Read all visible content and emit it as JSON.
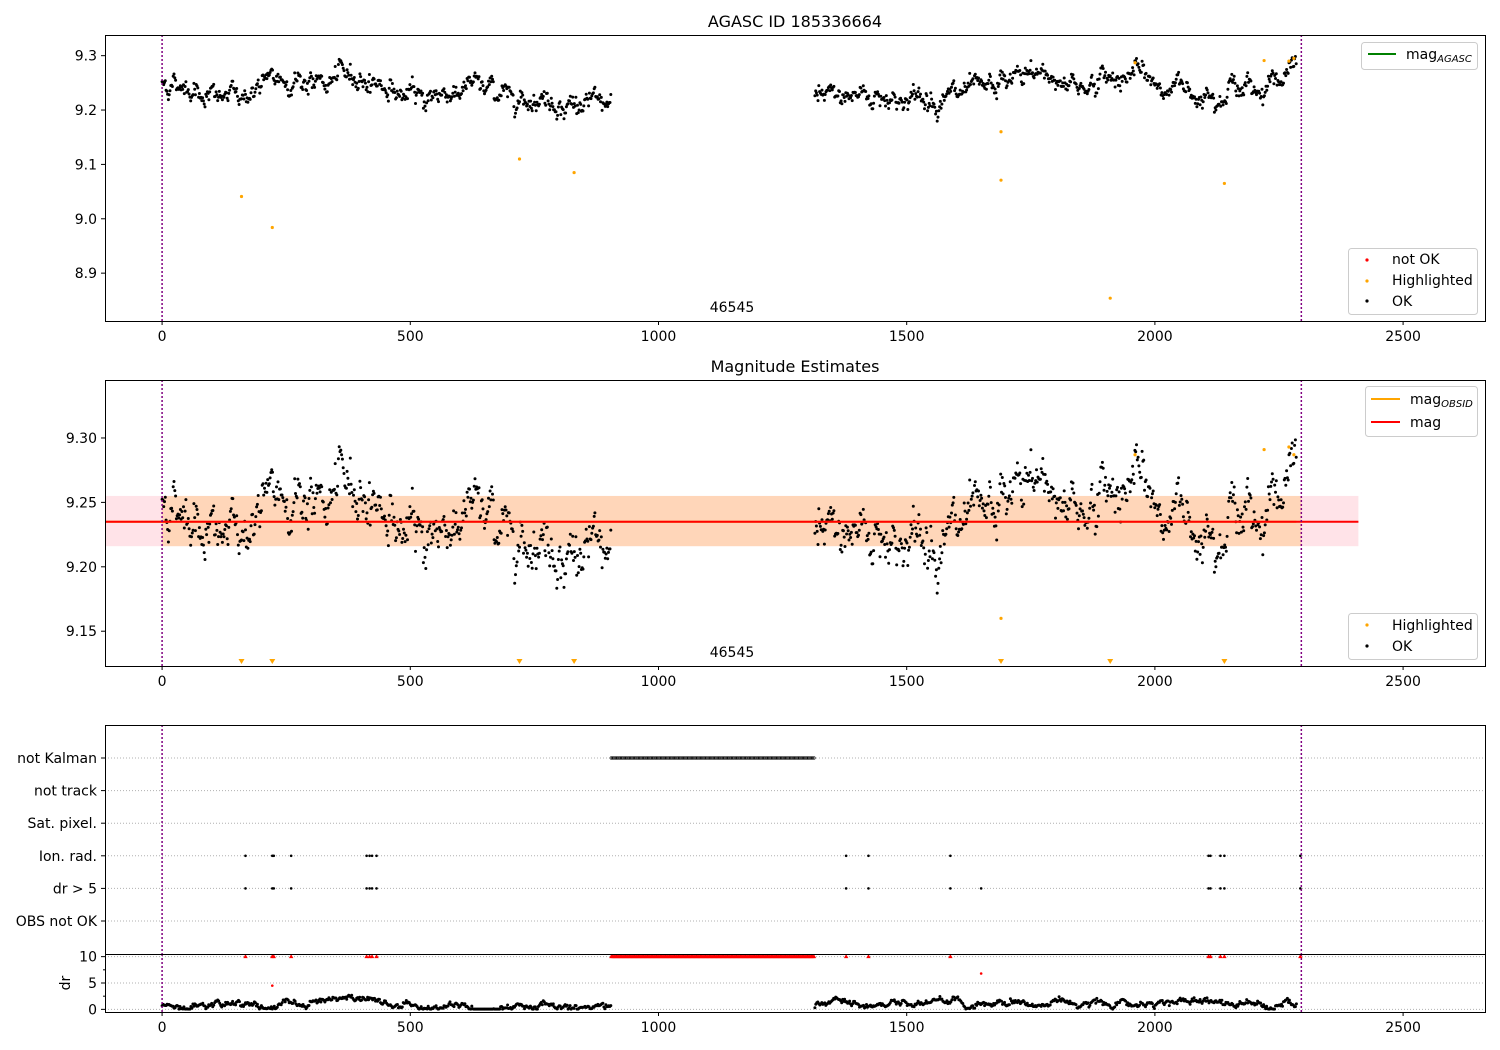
{
  "chart_data": [
    {
      "id": "agasc",
      "type": "scatter",
      "title": "AGASC ID 185336664",
      "xlim": [
        -115,
        2665
      ],
      "ylim": [
        8.812,
        9.338
      ],
      "x_ticks": [
        0,
        500,
        1000,
        1500,
        2000,
        2500
      ],
      "y_ticks": [
        8.9,
        9.0,
        9.1,
        9.2,
        9.3
      ],
      "y_tick_labels": [
        "8.9",
        "9.0",
        "9.1",
        "9.2",
        "9.3"
      ],
      "obsid_boundaries": [
        0,
        2295
      ],
      "obsid_label": "46545",
      "obsid_label_x": 1145,
      "line_legend": [
        {
          "label": "mag",
          "sub": "AGASC",
          "color": "#008000"
        }
      ],
      "marker_legend": [
        {
          "label": "not OK",
          "color": "#ff0000"
        },
        {
          "label": "Highlighted",
          "color": "#ffa500"
        },
        {
          "label": "OK",
          "color": "#000000"
        }
      ],
      "ok_segments": [
        {
          "x_range": [
            0,
            905
          ],
          "base": [
            [
              0,
              9.25
            ],
            [
              60,
              9.245
            ],
            [
              110,
              9.22
            ],
            [
              170,
              9.23
            ],
            [
              220,
              9.25
            ],
            [
              260,
              9.26
            ],
            [
              320,
              9.245
            ],
            [
              380,
              9.265
            ],
            [
              440,
              9.25
            ],
            [
              500,
              9.22
            ],
            [
              560,
              9.23
            ],
            [
              620,
              9.245
            ],
            [
              700,
              9.23
            ],
            [
              760,
              9.225
            ],
            [
              820,
              9.21
            ],
            [
              905,
              9.21
            ]
          ],
          "jitter": 0.013
        },
        {
          "x_range": [
            1315,
            2285
          ],
          "base": [
            [
              1315,
              9.22
            ],
            [
              1400,
              9.23
            ],
            [
              1500,
              9.22
            ],
            [
              1600,
              9.225
            ],
            [
              1660,
              9.23
            ],
            [
              1720,
              9.26
            ],
            [
              1780,
              9.265
            ],
            [
              1850,
              9.245
            ],
            [
              1960,
              9.27
            ],
            [
              2000,
              9.245
            ],
            [
              2100,
              9.235
            ],
            [
              2160,
              9.245
            ],
            [
              2200,
              9.235
            ],
            [
              2240,
              9.26
            ],
            [
              2285,
              9.275
            ]
          ],
          "jitter": 0.013
        }
      ],
      "highlighted": [
        {
          "x": 160,
          "y": 9.041
        },
        {
          "x": 222,
          "y": 8.984
        },
        {
          "x": 720,
          "y": 9.11
        },
        {
          "x": 830,
          "y": 9.085
        },
        {
          "x": 1690,
          "y": 9.16
        },
        {
          "x": 1690,
          "y": 9.071
        },
        {
          "x": 1910,
          "y": 8.854
        },
        {
          "x": 2140,
          "y": 9.065
        },
        {
          "x": 1960,
          "y": 9.287
        },
        {
          "x": 2220,
          "y": 9.291
        },
        {
          "x": 2270,
          "y": 9.29
        },
        {
          "x": 2280,
          "y": 9.295
        }
      ]
    },
    {
      "id": "estimates",
      "type": "scatter",
      "title": "Magnitude Estimates",
      "xlim": [
        -115,
        2665
      ],
      "ylim": [
        9.123,
        9.345
      ],
      "x_ticks": [
        0,
        500,
        1000,
        1500,
        2000,
        2500
      ],
      "y_ticks": [
        9.15,
        9.2,
        9.25,
        9.3
      ],
      "y_tick_labels": [
        "9.15",
        "9.20",
        "9.25",
        "9.30"
      ],
      "obsid_boundaries": [
        0,
        2295
      ],
      "obsid_label": "46545",
      "obsid_label_x": 1145,
      "mag_level": 9.235,
      "mag_band": [
        9.216,
        9.255
      ],
      "mag_band_x": [
        -115,
        2410
      ],
      "obsid_band": [
        9.216,
        9.255
      ],
      "obsid_band_x": [
        0,
        2295
      ],
      "line_legend": [
        {
          "label": "mag",
          "sub": "OBSID",
          "color": "#ffa500"
        },
        {
          "label": "mag",
          "sub": "",
          "color": "#ff0000"
        }
      ],
      "marker_legend": [
        {
          "label": "Highlighted",
          "color": "#ffa500"
        },
        {
          "label": "OK",
          "color": "#000000"
        }
      ],
      "ok_segments": [
        {
          "x_range": [
            0,
            905
          ],
          "base": [
            [
              0,
              9.25
            ],
            [
              60,
              9.245
            ],
            [
              110,
              9.22
            ],
            [
              170,
              9.23
            ],
            [
              220,
              9.25
            ],
            [
              260,
              9.26
            ],
            [
              320,
              9.245
            ],
            [
              380,
              9.265
            ],
            [
              440,
              9.25
            ],
            [
              500,
              9.22
            ],
            [
              560,
              9.23
            ],
            [
              620,
              9.245
            ],
            [
              700,
              9.23
            ],
            [
              760,
              9.225
            ],
            [
              820,
              9.21
            ],
            [
              905,
              9.21
            ]
          ],
          "jitter": 0.013
        },
        {
          "x_range": [
            1315,
            2285
          ],
          "base": [
            [
              1315,
              9.22
            ],
            [
              1400,
              9.23
            ],
            [
              1500,
              9.22
            ],
            [
              1600,
              9.225
            ],
            [
              1660,
              9.23
            ],
            [
              1720,
              9.26
            ],
            [
              1780,
              9.265
            ],
            [
              1850,
              9.245
            ],
            [
              1960,
              9.27
            ],
            [
              2000,
              9.245
            ],
            [
              2100,
              9.235
            ],
            [
              2160,
              9.245
            ],
            [
              2200,
              9.235
            ],
            [
              2240,
              9.26
            ],
            [
              2285,
              9.275
            ]
          ],
          "jitter": 0.013
        }
      ],
      "highlighted": [
        {
          "x": 1690,
          "y": 9.16
        },
        {
          "x": 1960,
          "y": 9.287
        },
        {
          "x": 2220,
          "y": 9.291
        },
        {
          "x": 2270,
          "y": 9.293
        },
        {
          "x": 2280,
          "y": 9.287
        }
      ],
      "offscale_markers_x": [
        160,
        222,
        720,
        830,
        1690,
        1910,
        2140
      ]
    },
    {
      "id": "flags",
      "type": "scatter",
      "xlim": [
        -115,
        2665
      ],
      "x_ticks": [
        0,
        500,
        1000,
        1500,
        2000,
        2500
      ],
      "obsid_boundaries": [
        0,
        2295
      ],
      "flag_rows": [
        "not Kalman",
        "not track",
        "Sat. pixel.",
        "Ion. rad.",
        "dr > 5",
        "OBS not OK"
      ],
      "flag_points": {
        "not Kalman": {
          "range": [
            905,
            1315
          ]
        },
        "not track": {
          "x": []
        },
        "Sat. pixel.": {
          "x": []
        },
        "Ion. rad.": {
          "x": [
            168,
            222,
            225,
            260,
            412,
            418,
            423,
            432,
            1378,
            1423,
            1588,
            2108,
            2112,
            2132,
            2140,
            2293
          ]
        },
        "dr > 5": {
          "x": [
            168,
            222,
            225,
            260,
            412,
            418,
            423,
            432,
            1378,
            1423,
            1588,
            1650,
            2108,
            2112,
            2132,
            2140,
            2293
          ]
        },
        "OBS not OK": {
          "x": []
        }
      }
    },
    {
      "id": "dr",
      "type": "scatter",
      "ylabel": "dr",
      "xlim": [
        -115,
        2665
      ],
      "ylim": [
        -0.5,
        10.5
      ],
      "x_ticks": [
        0,
        500,
        1000,
        1500,
        2000,
        2500
      ],
      "x_tick_labels": [
        "0",
        "500",
        "1000",
        "1500",
        "2000",
        "2500"
      ],
      "y_ticks": [
        0,
        5,
        10
      ],
      "y_tick_labels": [
        "0",
        "5",
        "10"
      ],
      "obsid_boundaries": [
        0,
        2295
      ],
      "ok_segments": [
        {
          "x_range": [
            0,
            905
          ],
          "base": [
            [
              0,
              0.6
            ],
            [
              100,
              0.8
            ],
            [
              200,
              0.7
            ],
            [
              380,
              1.9
            ],
            [
              420,
              1.6
            ],
            [
              460,
              0.6
            ],
            [
              905,
              0.6
            ]
          ],
          "jitter": 0.45
        },
        {
          "x_range": [
            1315,
            2285
          ],
          "base": [
            [
              1315,
              0.6
            ],
            [
              1380,
              1.8
            ],
            [
              1420,
              0.7
            ],
            [
              1600,
              1.6
            ],
            [
              1620,
              0.7
            ],
            [
              2100,
              1.7
            ],
            [
              2150,
              0.7
            ],
            [
              2285,
              0.8
            ]
          ],
          "jitter": 0.45
        }
      ],
      "red_triangles_top": {
        "x": [
          168,
          222,
          225,
          260,
          412,
          418,
          423,
          432,
          1378,
          1423,
          1588,
          2108,
          2112,
          2132,
          2140,
          2293
        ],
        "y": 10
      },
      "red_range_top": {
        "range": [
          905,
          1315
        ],
        "y": 10
      },
      "red_points": [
        {
          "x": 222,
          "y": 4.5
        },
        {
          "x": 1650,
          "y": 6.8
        }
      ]
    }
  ]
}
